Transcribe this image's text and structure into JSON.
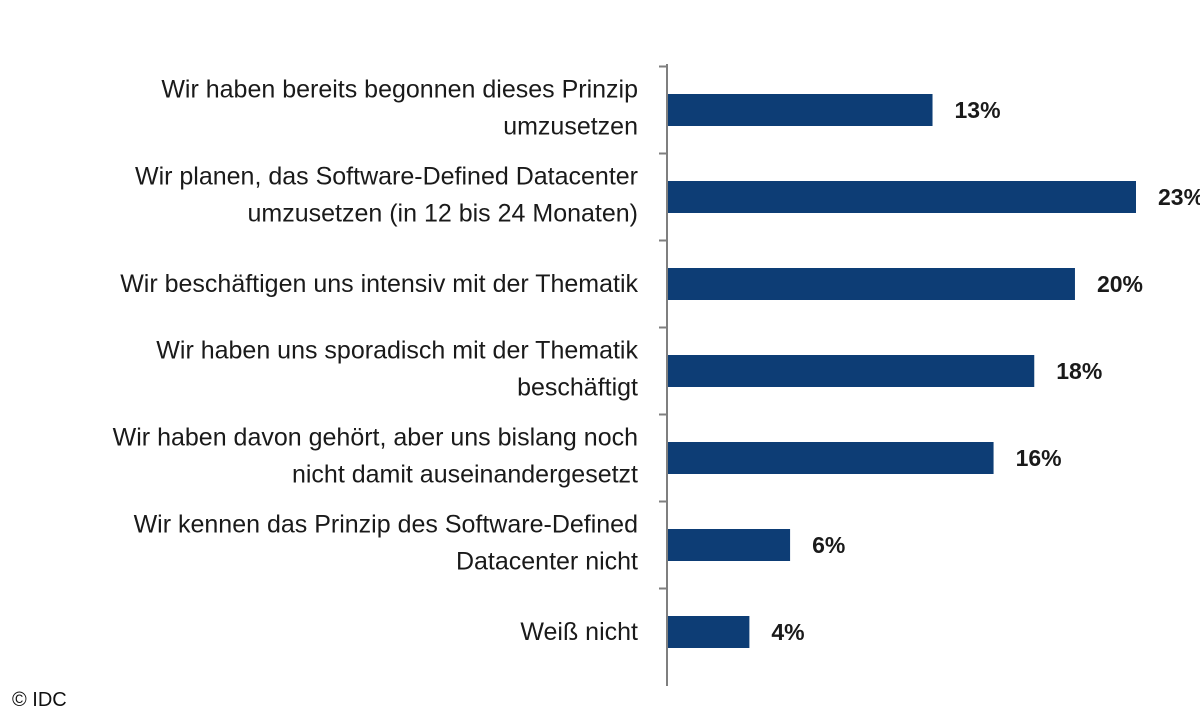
{
  "chart_data": {
    "type": "bar",
    "orientation": "horizontal",
    "categories": [
      [
        "Wir haben bereits begonnen dieses Prinzip",
        "umzusetzen"
      ],
      [
        "Wir planen, das Software-Defined Datacenter",
        "umzusetzen (in 12 bis 24 Monaten)"
      ],
      [
        "Wir beschäftigen uns intensiv mit der Thematik"
      ],
      [
        "Wir haben uns sporadisch mit der Thematik",
        "beschäftigt"
      ],
      [
        "Wir haben davon gehört, aber uns bislang noch",
        "nicht damit auseinandergesetzt"
      ],
      [
        "Wir kennen das Prinzip des Software-Defined",
        "Datacenter nicht"
      ],
      [
        "Weiß nicht"
      ]
    ],
    "values": [
      13,
      23,
      20,
      18,
      16,
      6,
      4
    ],
    "value_labels": [
      "13%",
      "23%",
      "20%",
      "18%",
      "16%",
      "6%",
      "4%"
    ],
    "xlim": [
      0,
      23
    ],
    "bar_color": "#0d3d75",
    "grid": false
  },
  "credit": "© IDC"
}
